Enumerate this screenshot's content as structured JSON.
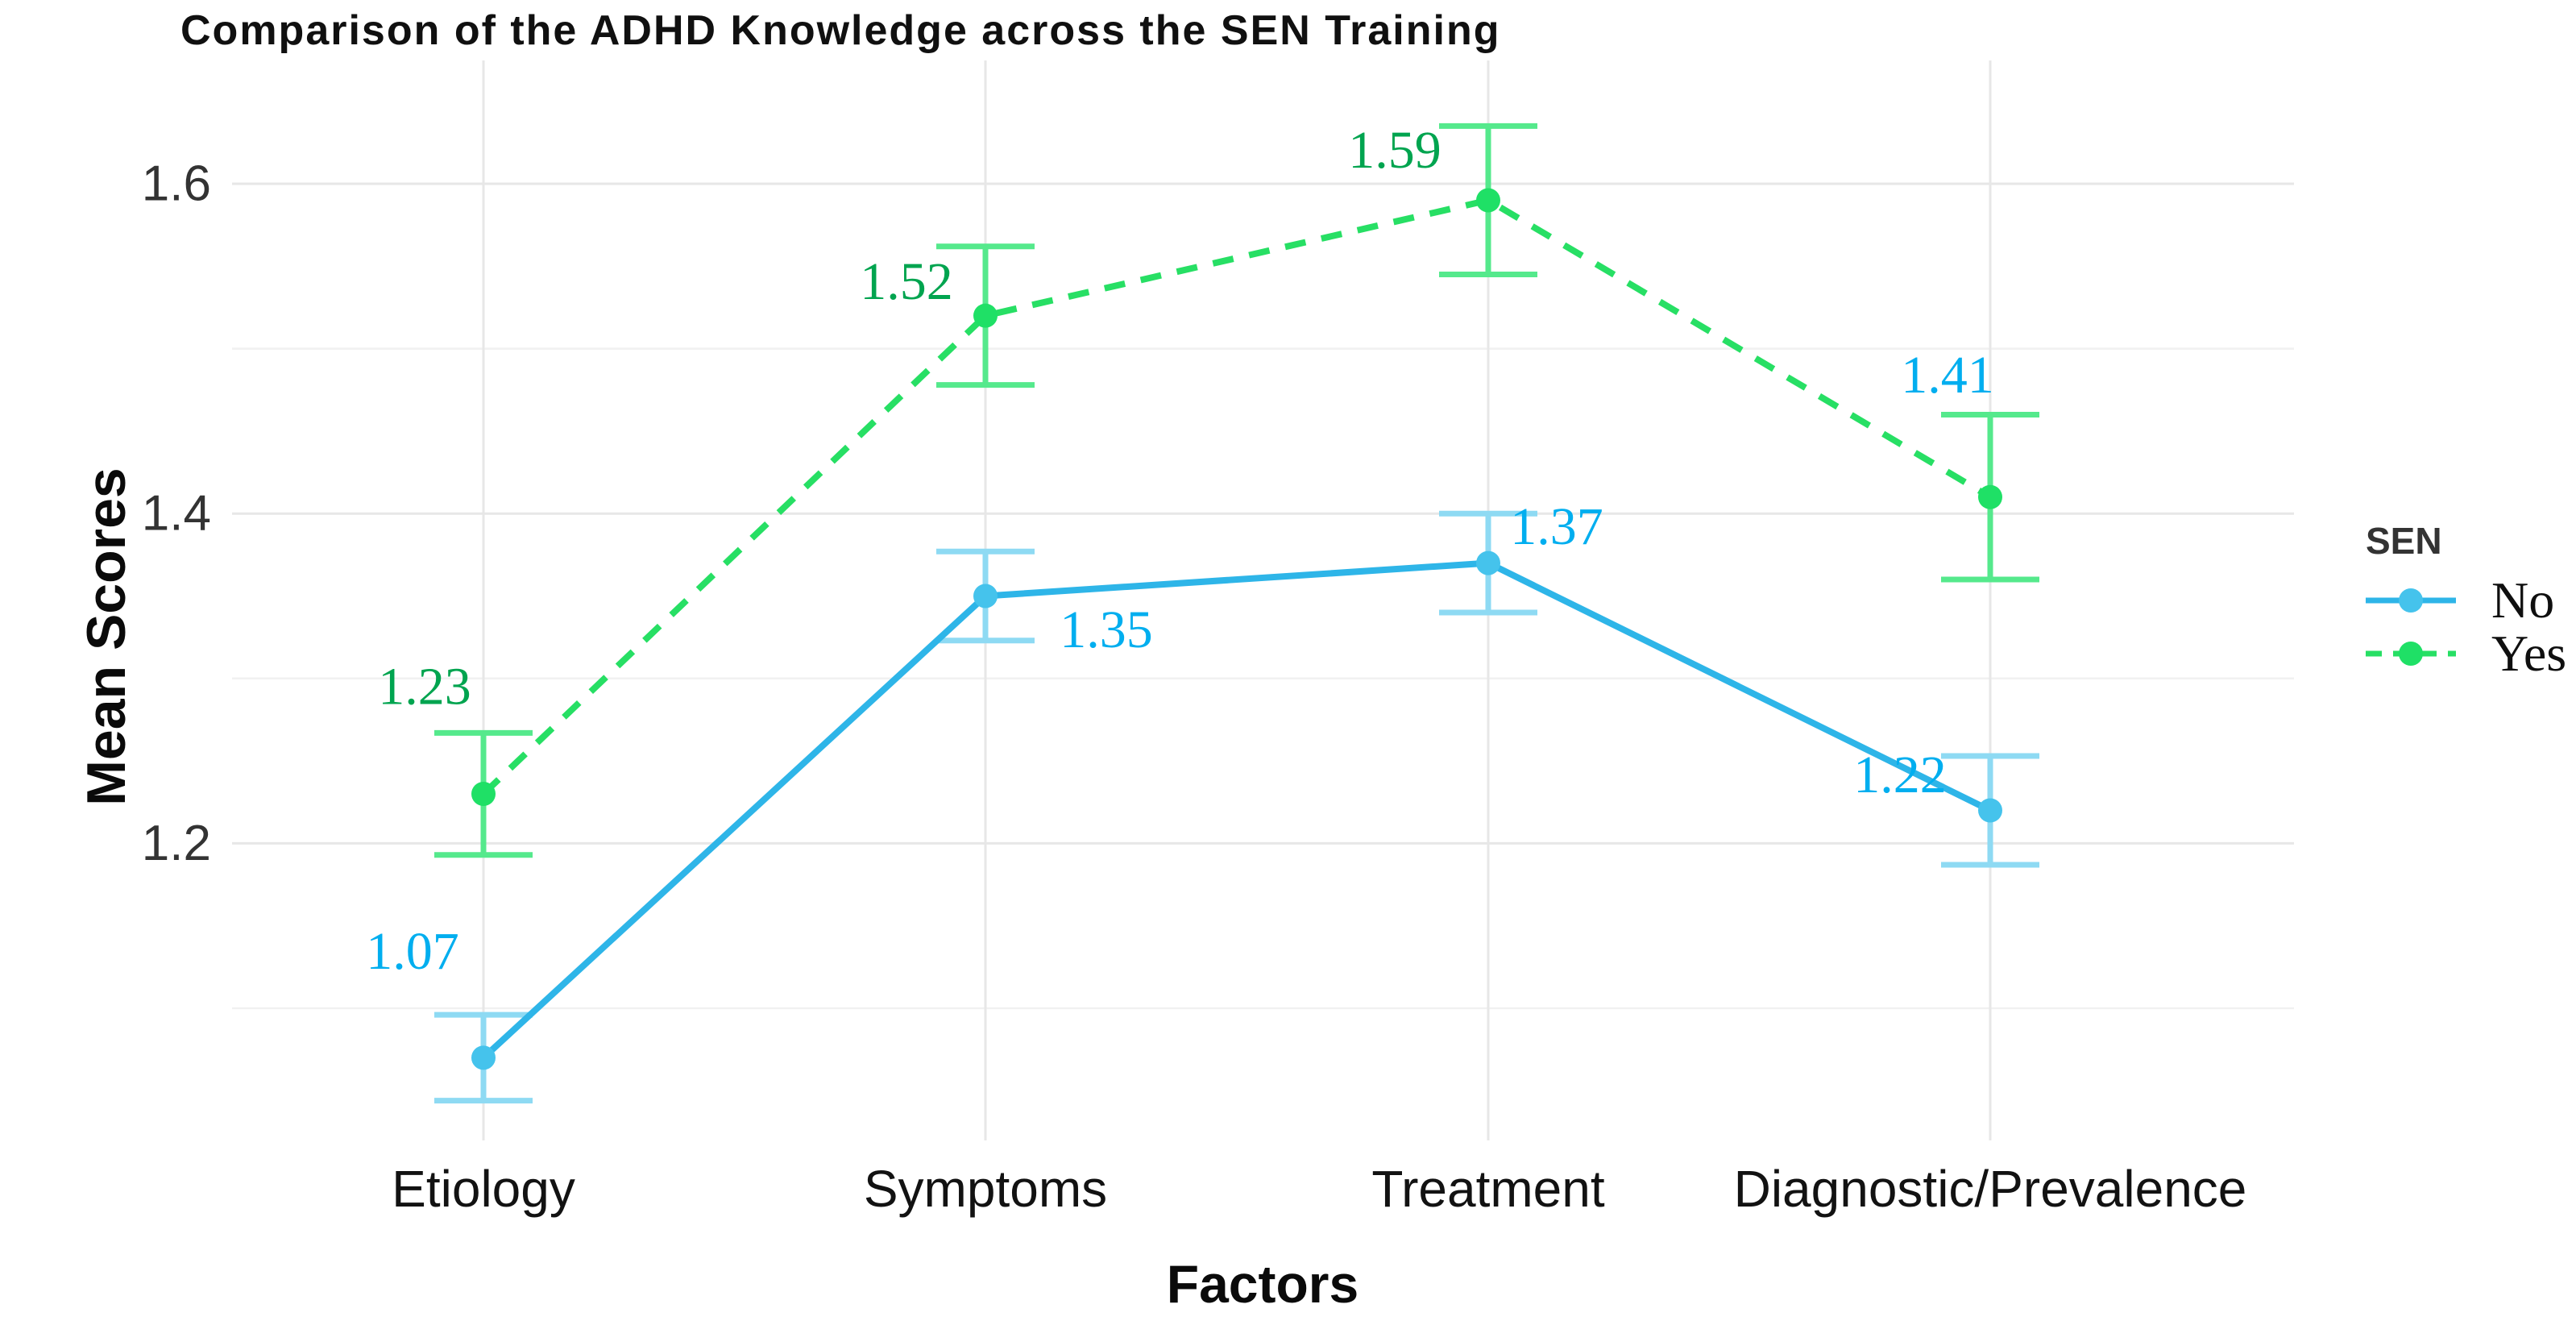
{
  "chart_data": {
    "type": "line",
    "title": "Comparison of the ADHD Knowledge across the SEN Training",
    "xlabel": "Factors",
    "ylabel": "Mean Scores",
    "categories": [
      "Etiology",
      "Symptoms",
      "Treatment",
      "Diagnostic/Prevalence"
    ],
    "y_tick_labels": [
      "1.2",
      "1.4",
      "1.6"
    ],
    "y_major_gridlines": [
      1.2,
      1.4,
      1.6
    ],
    "y_minor_gridlines": [
      1.1,
      1.3,
      1.5
    ],
    "ylim": [
      1.02,
      1.675
    ],
    "grid": true,
    "background": "#ffffff",
    "grid_major_color": "#e7e7e7",
    "grid_minor_color": "#f1f1f1",
    "series": [
      {
        "name": "No",
        "line_style": "solid",
        "color": "#2eb5e8",
        "point_color": "#45c3ec",
        "error_bar_color": "#8edaf3",
        "values": [
          1.07,
          1.35,
          1.37,
          1.22
        ],
        "errors": [
          0.026,
          0.027,
          0.03,
          0.033
        ],
        "point_labels": [
          "1.07",
          "1.35",
          "1.37",
          "1.22"
        ],
        "point_label_colors": [
          "#00aeef",
          "#00aeef",
          "#00aeef",
          "#00aeef"
        ]
      },
      {
        "name": "Yes",
        "line_style": "dashed",
        "color": "#27df64",
        "point_color": "#1fe066",
        "error_bar_color": "#55e98c",
        "values": [
          1.23,
          1.52,
          1.59,
          1.41
        ],
        "errors": [
          0.037,
          0.042,
          0.045,
          0.05
        ],
        "point_labels": [
          "1.23",
          "1.52",
          "1.59",
          "1.41"
        ],
        "point_label_colors": [
          "#00a44f",
          "#00a44f",
          "#00a44f",
          "#00aeef"
        ]
      }
    ],
    "legend": {
      "title": "SEN",
      "position": "right-middle",
      "items": [
        "No",
        "Yes"
      ]
    },
    "label_offsets": {
      "No": [
        [
          -88,
          -132
        ],
        [
          150,
          42
        ],
        [
          85,
          -45
        ],
        [
          -112,
          -44
        ]
      ],
      "Yes": [
        [
          -73,
          -133
        ],
        [
          -98,
          -42
        ],
        [
          -116,
          -62
        ],
        [
          -53,
          -151
        ]
      ]
    }
  }
}
